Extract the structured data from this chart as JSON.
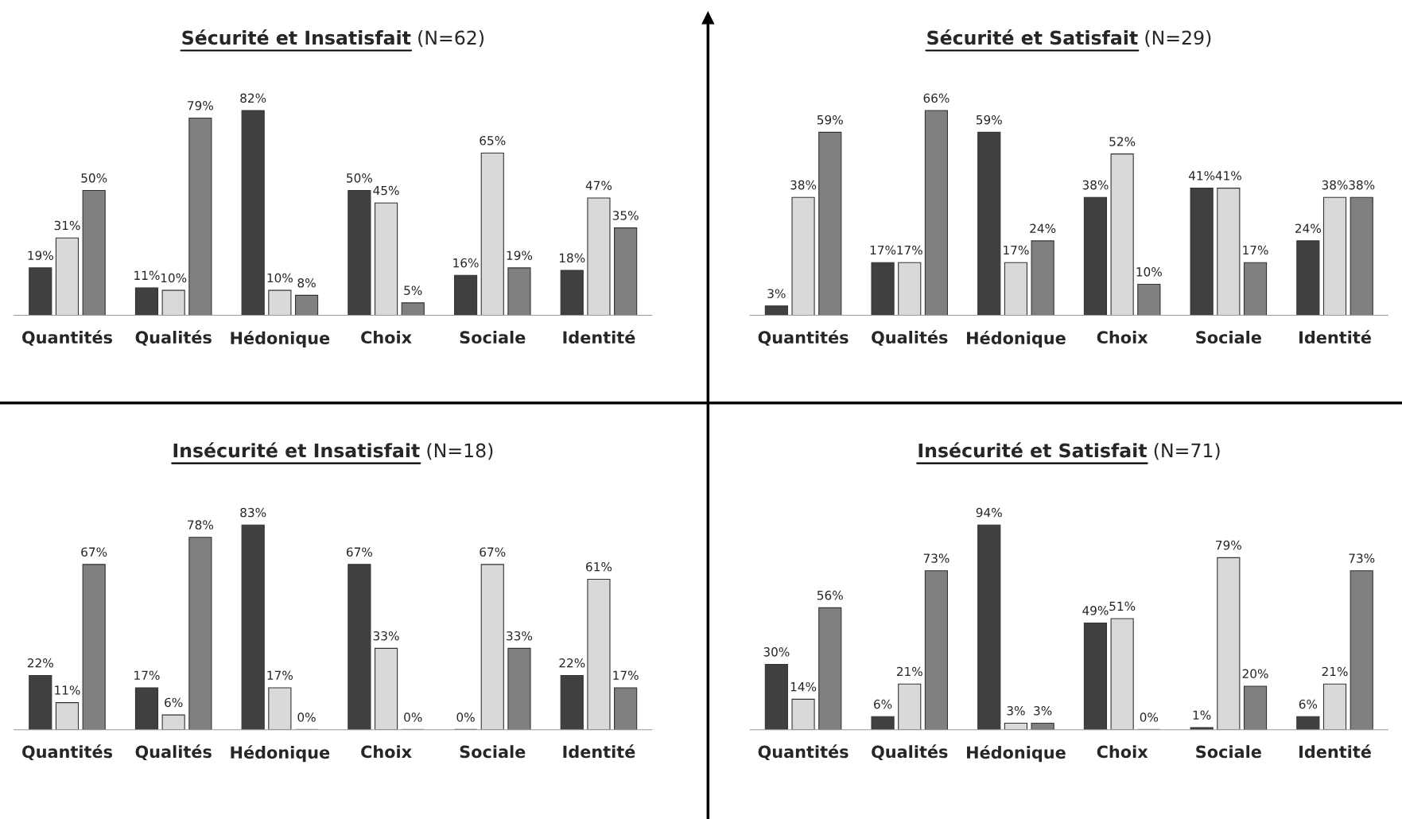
{
  "chart_data": [
    {
      "type": "bar",
      "title": "Sécurité et Insatisfait",
      "subtitle": "(N=62)",
      "categories": [
        "Quantités",
        "Qualités",
        "Hédonique",
        "Choix",
        "Sociale",
        "Identité"
      ],
      "series": [
        {
          "color": "#404040",
          "values": [
            19,
            11,
            82,
            50,
            16,
            18
          ],
          "value_labels": [
            "19%",
            "11%",
            "82%",
            "50%",
            "16%",
            "18%"
          ]
        },
        {
          "color": "#d9d9d9",
          "values": [
            31,
            10,
            10,
            45,
            65,
            47
          ],
          "value_labels": [
            "31%",
            "10%",
            "10%",
            "45%",
            "65%",
            "47%"
          ]
        },
        {
          "color": "#808080",
          "values": [
            50,
            79,
            8,
            5,
            19,
            35
          ],
          "value_labels": [
            "50%",
            "79%",
            "8%",
            "5%",
            "19%",
            "35%"
          ]
        }
      ],
      "grid": false,
      "legend": false
    },
    {
      "type": "bar",
      "title": "Sécurité et Satisfait",
      "subtitle": "(N=29)",
      "categories": [
        "Quantités",
        "Qualités",
        "Hédonique",
        "Choix",
        "Sociale",
        "Identité"
      ],
      "series": [
        {
          "color": "#404040",
          "values": [
            3,
            17,
            59,
            38,
            41,
            24
          ],
          "value_labels": [
            "3%",
            "17%",
            "59%",
            "38%",
            "41%",
            "24%"
          ]
        },
        {
          "color": "#d9d9d9",
          "values": [
            38,
            17,
            17,
            52,
            41,
            38
          ],
          "value_labels": [
            "38%",
            "17%",
            "17%",
            "52%",
            "41%",
            "38%"
          ]
        },
        {
          "color": "#808080",
          "values": [
            59,
            66,
            24,
            10,
            17,
            38
          ],
          "value_labels": [
            "59%",
            "66%",
            "24%",
            "10%",
            "17%",
            "38%"
          ]
        }
      ],
      "grid": false,
      "legend": false
    },
    {
      "type": "bar",
      "title": "Insécurité et Insatisfait",
      "subtitle": "(N=18)",
      "categories": [
        "Quantités",
        "Qualités",
        "Hédonique",
        "Choix",
        "Sociale",
        "Identité"
      ],
      "series": [
        {
          "color": "#404040",
          "values": [
            22,
            17,
            83,
            67,
            0,
            22
          ],
          "value_labels": [
            "22%",
            "17%",
            "83%",
            "67%",
            "0%",
            "22%"
          ]
        },
        {
          "color": "#d9d9d9",
          "values": [
            11,
            6,
            17,
            33,
            67,
            61
          ],
          "value_labels": [
            "11%",
            "6%",
            "17%",
            "33%",
            "67%",
            "61%"
          ]
        },
        {
          "color": "#808080",
          "values": [
            67,
            78,
            0,
            0,
            33,
            17
          ],
          "value_labels": [
            "67%",
            "78%",
            "0%",
            "0%",
            "33%",
            "17%"
          ]
        }
      ],
      "grid": false,
      "legend": false
    },
    {
      "type": "bar",
      "title": "Insécurité et Satisfait",
      "subtitle": "(N=71)",
      "categories": [
        "Quantités",
        "Qualités",
        "Hédonique",
        "Choix",
        "Sociale",
        "Identité"
      ],
      "series": [
        {
          "color": "#404040",
          "values": [
            30,
            6,
            94,
            49,
            1,
            6
          ],
          "value_labels": [
            "30%",
            "6%",
            "94%",
            "49%",
            "1%",
            "6%"
          ]
        },
        {
          "color": "#d9d9d9",
          "values": [
            14,
            21,
            3,
            51,
            79,
            21
          ],
          "value_labels": [
            "14%",
            "21%",
            "3%",
            "51%",
            "79%",
            "21%"
          ]
        },
        {
          "color": "#808080",
          "values": [
            56,
            73,
            3,
            0,
            20,
            73
          ],
          "value_labels": [
            "56%",
            "73%",
            "3%",
            "0%",
            "20%",
            "73%"
          ]
        }
      ],
      "grid": false,
      "legend": false
    }
  ]
}
